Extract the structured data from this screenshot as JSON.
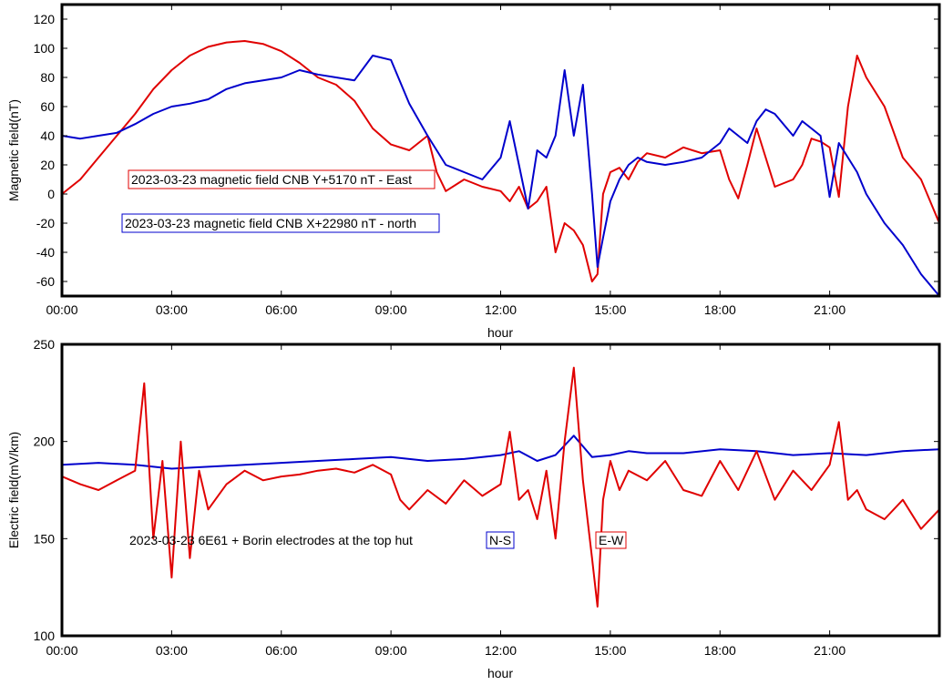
{
  "chart_data": [
    {
      "type": "line",
      "ylabel": "Magnetic field(nT)",
      "xlabel": "hour",
      "xlim": [
        0,
        24
      ],
      "ylim": [
        -70,
        130
      ],
      "x_ticks": [
        "00:00",
        "03:00",
        "06:00",
        "09:00",
        "12:00",
        "15:00",
        "18:00",
        "21:00"
      ],
      "y_ticks": [
        "-60",
        "-40",
        "-20",
        "0",
        "20",
        "40",
        "60",
        "80",
        "100",
        "120"
      ],
      "y_tick_values": [
        -60,
        -40,
        -20,
        0,
        20,
        40,
        60,
        80,
        100,
        120
      ],
      "grid": false,
      "legend": [
        {
          "text": "2023-03-23 magnetic field CNB Y+5170 nT - East",
          "color": "#e00000"
        },
        {
          "text": "2023-03-23 magnetic field CNB X+22980 nT - north",
          "color": "#0000cc"
        }
      ],
      "series": [
        {
          "color": "#e00000",
          "x": [
            0,
            0.5,
            1,
            1.5,
            2,
            2.5,
            3,
            3.5,
            4,
            4.5,
            5,
            5.5,
            6,
            6.5,
            7,
            7.5,
            8,
            8.5,
            9,
            9.5,
            10,
            10.25,
            10.5,
            11,
            11.5,
            12,
            12.25,
            12.5,
            12.75,
            13,
            13.25,
            13.5,
            13.75,
            14,
            14.25,
            14.5,
            14.65,
            14.8,
            15,
            15.25,
            15.5,
            15.75,
            16,
            16.5,
            17,
            17.5,
            18,
            18.25,
            18.5,
            18.75,
            19,
            19.25,
            19.5,
            20,
            20.25,
            20.5,
            20.75,
            21,
            21.25,
            21.5,
            21.75,
            22,
            22.5,
            23,
            23.5,
            24
          ],
          "y": [
            0,
            10,
            25,
            40,
            55,
            72,
            85,
            95,
            101,
            104,
            105,
            103,
            98,
            90,
            80,
            75,
            64,
            45,
            34,
            30,
            40,
            15,
            2,
            10,
            5,
            2,
            -5,
            5,
            -10,
            -5,
            5,
            -40,
            -20,
            -25,
            -35,
            -60,
            -55,
            0,
            15,
            18,
            10,
            22,
            28,
            25,
            32,
            28,
            30,
            10,
            -3,
            20,
            45,
            25,
            5,
            10,
            20,
            38,
            36,
            32,
            -2,
            60,
            95,
            80,
            60,
            25,
            10,
            -20
          ]
        },
        {
          "color": "#0000cc",
          "x": [
            0,
            0.5,
            1,
            1.5,
            2,
            2.5,
            3,
            3.5,
            4,
            4.5,
            5,
            5.5,
            6,
            6.5,
            7,
            7.5,
            8,
            8.5,
            9,
            9.5,
            10,
            10.25,
            10.5,
            11,
            11.5,
            12,
            12.25,
            12.5,
            12.75,
            13,
            13.25,
            13.5,
            13.75,
            14,
            14.25,
            14.5,
            14.65,
            14.8,
            15,
            15.25,
            15.5,
            15.75,
            16,
            16.5,
            17,
            17.5,
            18,
            18.25,
            18.5,
            18.75,
            19,
            19.25,
            19.5,
            20,
            20.25,
            20.5,
            20.75,
            21,
            21.25,
            21.5,
            21.75,
            22,
            22.5,
            23,
            23.5,
            24
          ],
          "y": [
            40,
            38,
            40,
            42,
            48,
            55,
            60,
            62,
            65,
            72,
            76,
            78,
            80,
            85,
            82,
            80,
            78,
            95,
            92,
            62,
            40,
            30,
            20,
            15,
            10,
            25,
            50,
            20,
            -10,
            30,
            25,
            40,
            85,
            40,
            75,
            0,
            -50,
            -30,
            -5,
            10,
            20,
            25,
            22,
            20,
            22,
            25,
            35,
            45,
            40,
            35,
            50,
            58,
            55,
            40,
            50,
            45,
            40,
            -2,
            35,
            25,
            15,
            0,
            -20,
            -35,
            -55,
            -70
          ]
        }
      ]
    },
    {
      "type": "line",
      "ylabel": "Electric field(mV/km)",
      "xlabel": "hour",
      "xlim": [
        0,
        24
      ],
      "ylim": [
        100,
        250
      ],
      "x_ticks": [
        "00:00",
        "03:00",
        "06:00",
        "09:00",
        "12:00",
        "15:00",
        "18:00",
        "21:00"
      ],
      "y_ticks": [
        "100",
        "150",
        "200",
        "250"
      ],
      "y_tick_values": [
        100,
        150,
        200,
        250
      ],
      "grid": false,
      "annotations": [
        "2023-03-23 6E61 + Borin electrodes at the top hut"
      ],
      "legend": [
        {
          "text": "N-S",
          "color": "#0000cc"
        },
        {
          "text": "E-W",
          "color": "#e00000"
        }
      ],
      "series": [
        {
          "color": "#0000cc",
          "x": [
            0,
            1,
            2,
            3,
            4,
            5,
            6,
            7,
            8,
            9,
            10,
            11,
            12,
            12.5,
            13,
            13.5,
            14,
            14.5,
            15,
            15.5,
            16,
            17,
            18,
            19,
            20,
            21,
            22,
            23,
            24
          ],
          "y": [
            188,
            189,
            188,
            186,
            187,
            188,
            189,
            190,
            191,
            192,
            190,
            191,
            193,
            195,
            190,
            193,
            203,
            192,
            193,
            195,
            194,
            194,
            196,
            195,
            193,
            194,
            193,
            195,
            196
          ]
        },
        {
          "color": "#e00000",
          "x": [
            0,
            0.5,
            1,
            1.5,
            2,
            2.25,
            2.5,
            2.75,
            3,
            3.25,
            3.5,
            3.75,
            4,
            4.5,
            5,
            5.5,
            6,
            6.5,
            7,
            7.5,
            8,
            8.5,
            9,
            9.25,
            9.5,
            10,
            10.5,
            11,
            11.5,
            12,
            12.25,
            12.5,
            12.75,
            13,
            13.25,
            13.5,
            13.75,
            14,
            14.25,
            14.5,
            14.65,
            14.8,
            15,
            15.25,
            15.5,
            16,
            16.5,
            17,
            17.5,
            18,
            18.5,
            19,
            19.5,
            20,
            20.5,
            21,
            21.25,
            21.5,
            21.75,
            22,
            22.5,
            23,
            23.5,
            24
          ],
          "y": [
            182,
            178,
            175,
            180,
            185,
            230,
            150,
            190,
            130,
            200,
            140,
            185,
            165,
            178,
            185,
            180,
            182,
            183,
            185,
            186,
            184,
            188,
            183,
            170,
            165,
            175,
            168,
            180,
            172,
            178,
            205,
            170,
            175,
            160,
            185,
            150,
            200,
            238,
            180,
            140,
            115,
            170,
            190,
            175,
            185,
            180,
            190,
            175,
            172,
            190,
            175,
            195,
            170,
            185,
            175,
            188,
            210,
            170,
            175,
            165,
            160,
            170,
            155,
            165
          ]
        }
      ]
    }
  ]
}
